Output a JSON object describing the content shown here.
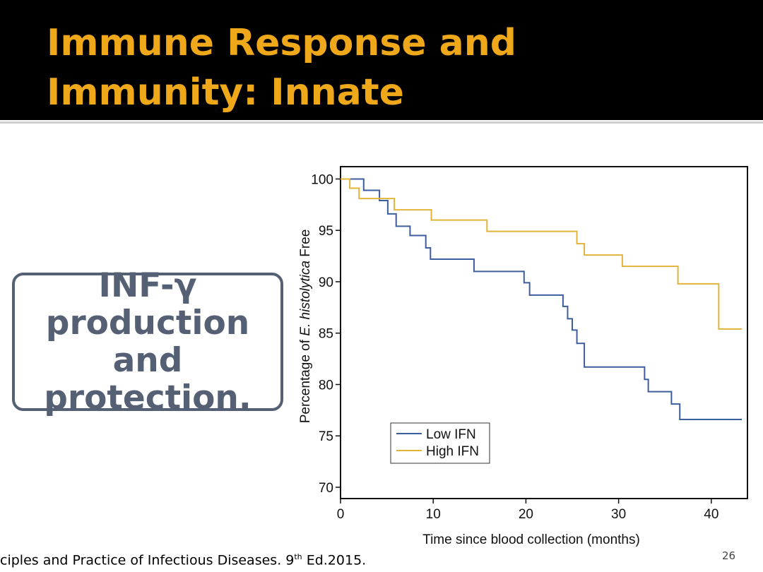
{
  "slide": {
    "title_line1": "Immune Response and",
    "title_line2": "Immunity: Innate",
    "box_text": "INF-γ production and protection.",
    "footer_before": "ciples and Practice of Infectious Diseases. 9",
    "footer_sup": "th",
    "footer_after": " Ed.2015.",
    "page_number": "26"
  },
  "chart_data": {
    "type": "step",
    "xlabel": "Time since blood collection (months)",
    "ylabel_parts": [
      "Percentage of ",
      "E. histolytica",
      " Free"
    ],
    "xlim": [
      0,
      43.9
    ],
    "ylim": [
      68.9,
      101.2
    ],
    "xticks": [
      0,
      10,
      20,
      30,
      40
    ],
    "yticks": [
      70,
      75,
      80,
      85,
      90,
      95,
      100
    ],
    "legend": "lower left",
    "series": [
      {
        "name": "Low IFN",
        "color": "#3d5e9e",
        "x": [
          0,
          2.5,
          4.2,
          5.1,
          6,
          7.5,
          9.2,
          9.7,
          14.4,
          19.8,
          20.4,
          24,
          24.5,
          25,
          25.5,
          26.3,
          32.8,
          33.2,
          35.7,
          36.6,
          43.3
        ],
        "values": [
          100,
          98.9,
          97.9,
          96.6,
          95.4,
          94.5,
          93.3,
          92.2,
          91,
          89.9,
          88.7,
          87.6,
          86.4,
          85.3,
          84,
          81.7,
          80.5,
          79.3,
          78.1,
          76.6,
          76.6
        ]
      },
      {
        "name": "High IFN",
        "color": "#e2b43a",
        "x": [
          0,
          1,
          2,
          5.8,
          9.8,
          15.8,
          25.5,
          26.3,
          30.4,
          36.4,
          40.8,
          43.3
        ],
        "values": [
          100,
          99.1,
          98.1,
          97,
          96,
          94.9,
          93.7,
          92.6,
          91.5,
          89.8,
          85.4,
          85.4
        ]
      }
    ]
  }
}
